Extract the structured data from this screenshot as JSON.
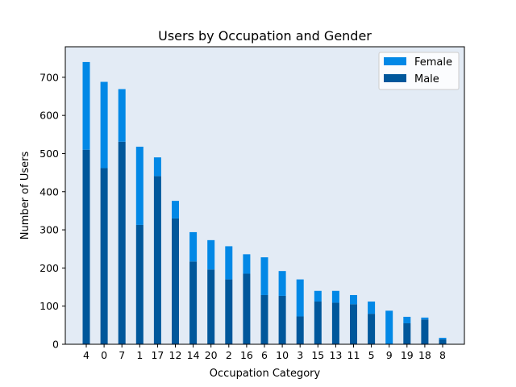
{
  "chart_data": {
    "type": "bar",
    "stacked": true,
    "title": "Users by Occupation and Gender",
    "xlabel": "Occupation Category",
    "ylabel": "Number of Users",
    "categories": [
      "4",
      "0",
      "7",
      "1",
      "17",
      "12",
      "14",
      "20",
      "2",
      "16",
      "6",
      "10",
      "3",
      "15",
      "13",
      "11",
      "5",
      "9",
      "19",
      "18",
      "8"
    ],
    "series": [
      {
        "name": "Male",
        "color": "#00579b",
        "values": [
          510,
          462,
          531,
          313,
          441,
          330,
          217,
          196,
          170,
          185,
          129,
          127,
          73,
          112,
          109,
          105,
          80,
          0,
          55,
          65,
          13
        ]
      },
      {
        "name": "Female",
        "color": "#0288e6",
        "values": [
          230,
          226,
          138,
          205,
          49,
          46,
          77,
          77,
          87,
          51,
          99,
          65,
          97,
          28,
          31,
          24,
          32,
          88,
          17,
          5,
          4
        ]
      }
    ],
    "legend": {
      "placement": "top-right",
      "order": [
        "Female",
        "Male"
      ]
    },
    "ylim": [
      0,
      780
    ],
    "yticks": [
      0,
      100,
      200,
      300,
      400,
      500,
      600,
      700
    ],
    "grid": false,
    "plot_background": "#e3ebf5"
  }
}
